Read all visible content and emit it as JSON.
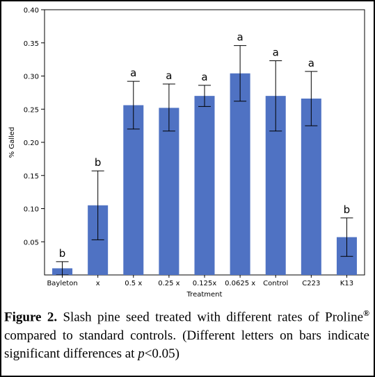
{
  "chart_data": {
    "type": "bar",
    "categories": [
      "Bayleton",
      "x",
      "0.5 x",
      "0.25 x",
      "0.125x",
      "0.0625 x",
      "Control",
      "C223",
      "K13"
    ],
    "values": [
      0.01,
      0.105,
      0.256,
      0.252,
      0.27,
      0.304,
      0.27,
      0.266,
      0.057
    ],
    "error_upper": [
      0.02,
      0.157,
      0.292,
      0.288,
      0.286,
      0.346,
      0.323,
      0.307,
      0.086
    ],
    "error_lower": [
      0.0,
      0.053,
      0.22,
      0.217,
      0.254,
      0.262,
      0.217,
      0.225,
      0.028
    ],
    "significance_letters": [
      "b",
      "b",
      "a",
      "a",
      "a",
      "a",
      "a",
      "a",
      "b"
    ],
    "ylim": [
      0,
      0.4
    ],
    "yticks": [
      "0.05",
      "0.10",
      "0.15",
      "0.20",
      "0.25",
      "0.30",
      "0.35",
      "0.40"
    ],
    "ytick_values": [
      0.05,
      0.1,
      0.15,
      0.2,
      0.25,
      0.3,
      0.35,
      0.4
    ],
    "xlabel": "Treatment",
    "ylabel": "% Galled",
    "bar_color": "#4f72c3",
    "grid": false
  },
  "caption": {
    "label": "Figure 2.",
    "part1": " Slash pine seed treated with different rates of Proline",
    "reg": "®",
    "part2": " compared to standard controls. (Different letters on bars indicate significant differences at ",
    "p": "p",
    "part3": "<0.05)"
  }
}
